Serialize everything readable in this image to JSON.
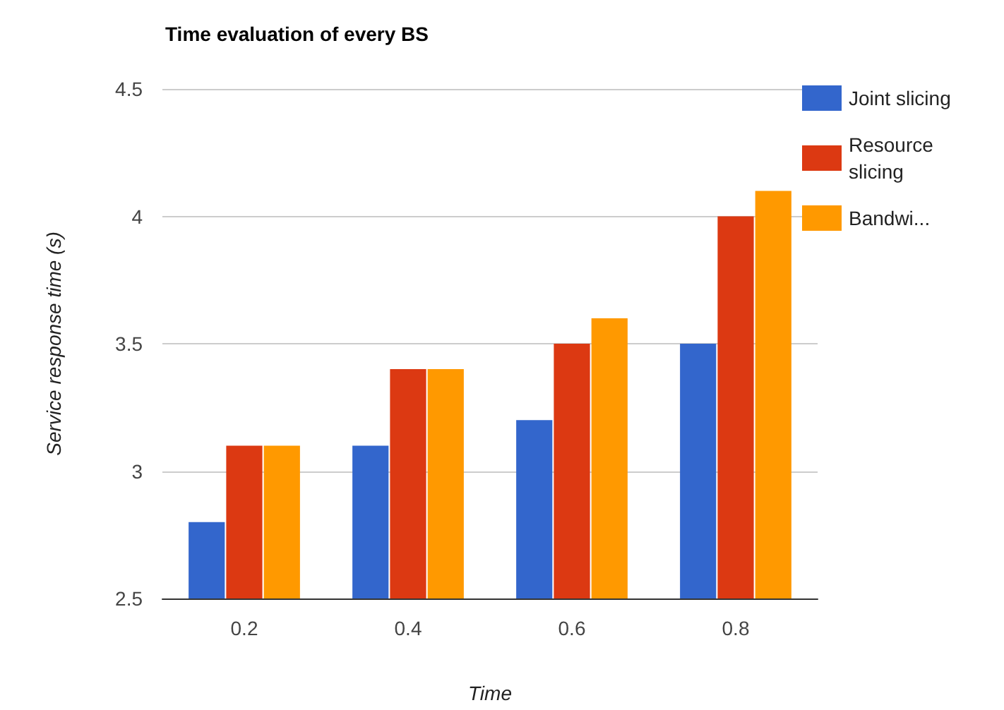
{
  "chart_data": {
    "type": "bar",
    "title": "Time evaluation of every BS",
    "xlabel": "Time",
    "ylabel": "Service response time (s)",
    "categories": [
      "0.2",
      "0.4",
      "0.6",
      "0.8"
    ],
    "series": [
      {
        "name": "Joint slicing",
        "color": "#3366cc",
        "values": [
          2.8,
          3.1,
          3.2,
          3.5
        ]
      },
      {
        "name": "Resource slicing",
        "color": "#dc3912",
        "values": [
          3.1,
          3.4,
          3.5,
          4.0
        ]
      },
      {
        "name": "Bandwi...",
        "color": "#ff9900",
        "values": [
          3.1,
          3.4,
          3.6,
          4.1
        ]
      }
    ],
    "ylim": [
      2.5,
      4.5
    ],
    "yticks": [
      2.5,
      3,
      3.5,
      4,
      4.5
    ],
    "grid": "y",
    "legend": "right"
  }
}
